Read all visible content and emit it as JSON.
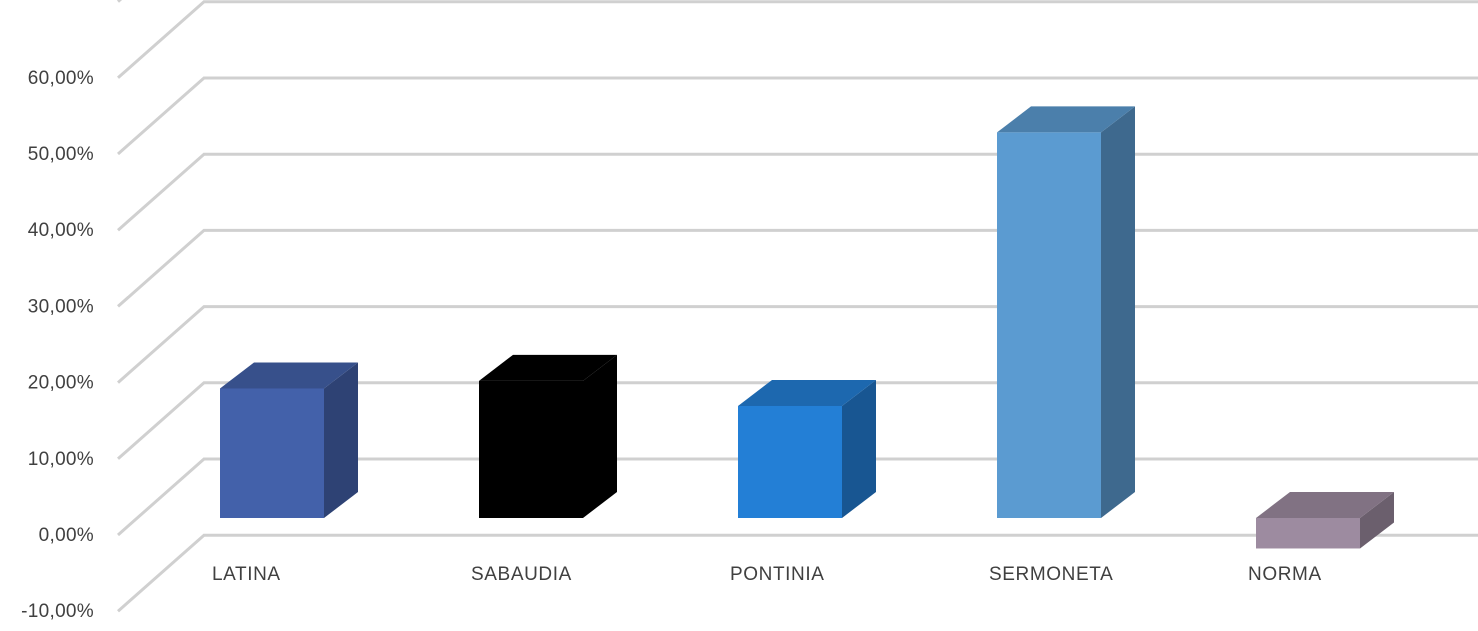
{
  "chart_data": {
    "type": "bar",
    "style": "3d-column",
    "categories": [
      "LATINA",
      "SABAUDIA",
      "PONTINIA",
      "SERMONETA",
      "NORMA"
    ],
    "values": [
      17.0,
      18.0,
      14.7,
      50.6,
      -4.0
    ],
    "colors": [
      "#4361aa",
      "#000000",
      "#237fd6",
      "#5b9bd1",
      "#9d8ba0"
    ],
    "y_ticks": [
      "-10,00%",
      "0,00%",
      "10,00%",
      "20,00%",
      "30,00%",
      "40,00%",
      "50,00%",
      "60,00%"
    ],
    "ylim": [
      -10,
      70
    ],
    "grid": true,
    "legend": "none",
    "title": "",
    "xlabel": "",
    "ylabel": ""
  }
}
